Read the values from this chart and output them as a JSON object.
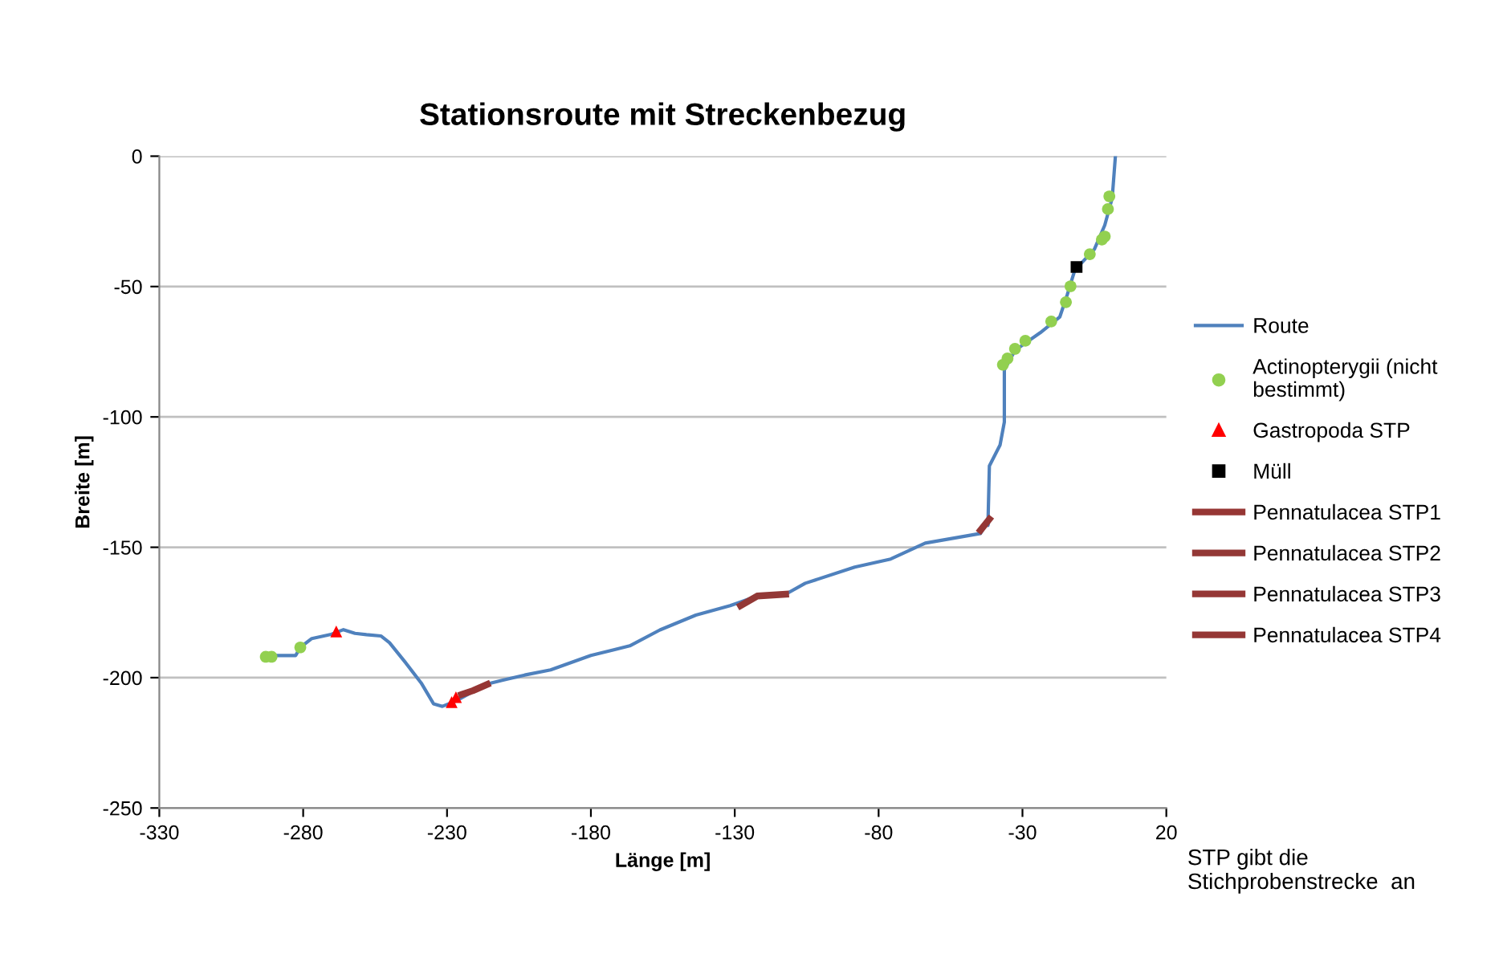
{
  "chart_data": {
    "type": "line",
    "title": "Stationsroute mit Streckenbezug",
    "xlabel": "Länge [m]",
    "ylabel": "Breite [m]",
    "xlim": [
      -330,
      20
    ],
    "xticks": [
      -330,
      -280,
      -230,
      -180,
      -130,
      -80,
      -30,
      20
    ],
    "ylim": [
      -250,
      0
    ],
    "yticks": [
      -250,
      -200,
      -150,
      -100,
      -50,
      0
    ],
    "grid": "y",
    "legend": "right",
    "annotations": [
      "STP gibt die\nStichprobenstrecke  an"
    ],
    "series": [
      {
        "name": "Route",
        "color": "#4f81bd",
        "marker": "none",
        "x": [
          -293,
          -282.6,
          -281,
          -277,
          -270.6,
          -266,
          -262,
          -258,
          -253,
          -250,
          -244.6,
          -239,
          -234.7,
          -231.6,
          -227,
          -216.5,
          -209.7,
          -203,
          -194,
          -180,
          -166.5,
          -156,
          -143.5,
          -131.6,
          -128,
          -122.2,
          -112.3,
          -105.5,
          -88.3,
          -75.8,
          -63.8,
          -44.6,
          -41.5,
          -42,
          -41.5,
          -37.8,
          -36.3,
          -36.3,
          -32.6,
          -23.8,
          -17,
          -14.4,
          -11.8,
          -5,
          -1.4,
          1.2,
          2.3
        ],
        "values": [
          -191.5,
          -191.5,
          -188.4,
          -185,
          -183.5,
          -181.6,
          -183,
          -183.5,
          -184,
          -186.6,
          -194,
          -202,
          -210,
          -211,
          -209,
          -202.6,
          -200.7,
          -199,
          -197,
          -191.5,
          -187.8,
          -181.7,
          -176,
          -172.4,
          -171,
          -168.7,
          -168,
          -163.8,
          -157.6,
          -154.5,
          -148.4,
          -144.7,
          -139,
          -141.6,
          -118.8,
          -110.8,
          -102,
          -82,
          -74.5,
          -67.7,
          -61.6,
          -53,
          -43.7,
          -35.7,
          -26.5,
          -16,
          0
        ]
      },
      {
        "name": "Actinopterygii (nicht\nbestimmt)",
        "type": "scatter",
        "color": "#92d050",
        "marker": "circle",
        "x": [
          -293,
          -291,
          -281,
          0.2,
          -0.3,
          -1.4,
          -2.4,
          -6.6,
          -13.3,
          -14.9,
          -20,
          -29,
          -32.6,
          -35.2,
          -36.8
        ],
        "values": [
          -192,
          -192,
          -188.4,
          -15.4,
          -20.3,
          -30.8,
          -32,
          -37.6,
          -49.9,
          -56,
          -63.4,
          -70.8,
          -73.9,
          -77.6,
          -80
        ]
      },
      {
        "name": "Gastropoda STP",
        "type": "scatter",
        "color": "#ff0000",
        "marker": "triangle",
        "x": [
          -268.5,
          -228.4,
          -226.9
        ],
        "values": [
          -182.3,
          -209.4,
          -207.5
        ]
      },
      {
        "name": "Müll",
        "type": "scatter",
        "color": "#000000",
        "marker": "square",
        "x": [
          -11.2
        ],
        "values": [
          -42.5
        ]
      },
      {
        "name": "Pennatulacea STP1",
        "type": "line",
        "color": "#963634",
        "marker": "none",
        "x": [
          -225,
          -221,
          -216
        ],
        "values": [
          -206.5,
          -205,
          -202.6
        ]
      },
      {
        "name": "Pennatulacea STP2",
        "type": "line",
        "color": "#933836",
        "marker": "none",
        "x": [
          -128,
          -122.2,
          -112.3
        ],
        "values": [
          -172.4,
          -168.7,
          -168
        ]
      },
      {
        "name": "Pennatulacea STP3",
        "type": "line",
        "color": "#953735",
        "marker": "none",
        "x": [
          -44.6,
          -41.5
        ],
        "values": [
          -143.5,
          -139.2
        ]
      },
      {
        "name": "Pennatulacea STP4",
        "type": "line",
        "color": "#953735",
        "marker": "none"
      }
    ]
  }
}
